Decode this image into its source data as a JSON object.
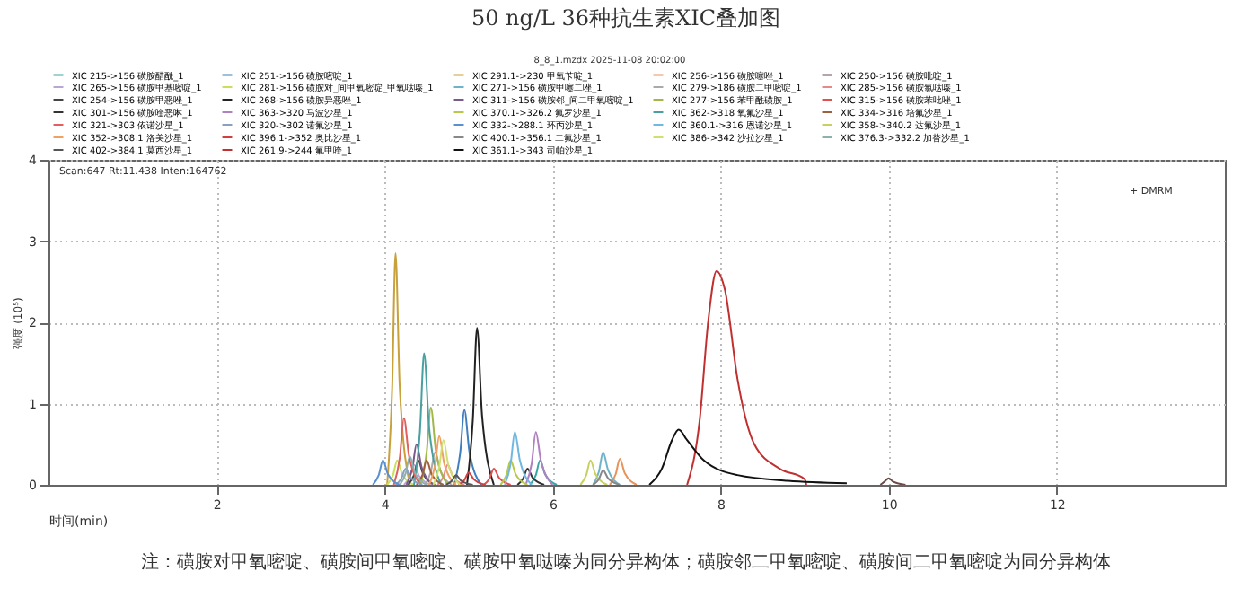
{
  "chart_data": {
    "type": "line",
    "title": "50 ng/L 36种抗生素XIC叠加图",
    "xlabel": "时间(min)",
    "ylabel": "强度 (10⁵)",
    "annotations": [
      "8_8_1.mzdx 2025-11-08 20:02:00",
      "Scan:647 Rt:11.438 Inten:164762",
      "+ DMRM",
      "注：磺胺对甲氧嘧啶、磺胺间甲氧嘧啶、磺胺甲氧哒嗪为同分异构体；磺胺邻二甲氧嘧啶、磺胺间二甲氧嘧啶为同分异构体"
    ],
    "xlim": [
      0,
      14
    ],
    "xticks": [
      2,
      4,
      6,
      8,
      10,
      12
    ],
    "ylim": [
      0,
      4
    ],
    "yticks": [
      0,
      1,
      2,
      3,
      4
    ],
    "grid": true,
    "legend": "top",
    "line_style": "solid",
    "series": [
      {
        "name": "XIC 215->156 磺胺醋酰_1",
        "color": "#3aa6a0",
        "x": [
          5.73,
          5.8,
          5.85,
          5.91,
          6.05
        ],
        "values": [
          0,
          0.12,
          0.3,
          0.13,
          0
        ]
      },
      {
        "name": "XIC 251->156 磺胺嘧啶_1",
        "color": "#3f7fbf",
        "x": [
          4.83,
          4.9,
          4.95,
          5.01,
          5.15
        ],
        "values": [
          0,
          0.4,
          0.92,
          0.4,
          0
        ]
      },
      {
        "name": "XIC 291.1->230 甲氧苄啶_1",
        "color": "#c8a13a",
        "x": [
          4.03,
          4.09,
          4.13,
          4.18,
          4.3
        ],
        "values": [
          0,
          1.2,
          2.85,
          1.2,
          0
        ]
      },
      {
        "name": "XIC 256->156 磺胺噻唑_1",
        "color": "#e8935a",
        "x": [
          6.68,
          6.75,
          6.8,
          6.86,
          7.0
        ],
        "values": [
          0,
          0.13,
          0.32,
          0.14,
          0
        ]
      },
      {
        "name": "XIC 250->156 磺胺吡啶_1",
        "color": "#6b4a4a",
        "x": [
          9.9,
          9.95,
          10.0,
          10.05,
          10.2
        ],
        "values": [
          0,
          0.04,
          0.08,
          0.04,
          0
        ]
      },
      {
        "name": "XIC 265->156 磺胺甲基嘧啶_1",
        "color": "#b9a6d3",
        "x": [
          4.23,
          4.3,
          4.35,
          4.41,
          4.55
        ],
        "values": [
          0,
          0.1,
          0.25,
          0.11,
          0
        ]
      },
      {
        "name": "XIC 281->156 磺胺对_间甲氧嘧啶_甲氧哒嗪_1",
        "color": "#c8e05a",
        "x": [
          4.03,
          4.1,
          4.15,
          4.21,
          4.35
        ],
        "values": [
          0,
          0.12,
          0.3,
          0.13,
          0
        ]
      },
      {
        "name": "XIC 271->156 磺胺甲噻二唑_1",
        "color": "#6fb3c8",
        "x": [
          6.48,
          6.55,
          6.6,
          6.66,
          6.8
        ],
        "values": [
          0,
          0.16,
          0.4,
          0.18,
          0
        ]
      },
      {
        "name": "XIC 279->186 磺胺二甲嘧啶_1",
        "color": "#aaaaaa",
        "x": [
          4.48,
          4.55,
          4.6,
          4.66,
          4.8
        ],
        "values": [
          0,
          0.16,
          0.4,
          0.18,
          0
        ]
      },
      {
        "name": "XIC 285->156 磺胺氯哒嗪_1",
        "color": "#e58a8a",
        "x": [
          4.63,
          4.7,
          4.75,
          4.81,
          4.95
        ],
        "values": [
          0,
          0.1,
          0.25,
          0.11,
          0
        ]
      },
      {
        "name": "XIC 254->156 磺胺甲恶唑_1",
        "color": "#444444",
        "x": [
          4.28,
          4.35,
          4.4,
          4.46,
          4.6
        ],
        "values": [
          0,
          0.12,
          0.3,
          0.13,
          0
        ]
      },
      {
        "name": "XIC 268->156 磺胺异恶唑_1",
        "color": "#222222",
        "x": [
          4.98,
          5.05,
          5.1,
          5.16,
          5.3
        ],
        "values": [
          0,
          0.8,
          1.93,
          0.85,
          0
        ]
      },
      {
        "name": "XIC 311->156 磺胺邻_间二甲氧嘧啶_1",
        "color": "#7a5a8a",
        "x": [
          4.26,
          4.33,
          4.38,
          4.44,
          4.58
        ],
        "values": [
          0,
          0.2,
          0.5,
          0.22,
          0
        ]
      },
      {
        "name": "XIC 277->156 苯甲酰磺胺_1",
        "color": "#a0b84a",
        "x": [
          4.43,
          4.5,
          4.55,
          4.61,
          4.75
        ],
        "values": [
          0,
          0.4,
          0.95,
          0.42,
          0
        ]
      },
      {
        "name": "XIC 315->156 磺胺苯吡唑_1",
        "color": "#e05050",
        "x": [
          5.18,
          5.25,
          5.3,
          5.36,
          5.5
        ],
        "values": [
          0,
          0.08,
          0.2,
          0.09,
          0
        ]
      },
      {
        "name": "XIC 301->156 磺胺喹恶啉_1",
        "color": "#333333",
        "x": [
          5.58,
          5.65,
          5.7,
          5.76,
          5.9
        ],
        "values": [
          0,
          0.08,
          0.2,
          0.09,
          0
        ]
      },
      {
        "name": "XIC 363->320 马波沙星_1",
        "color": "#b080c0",
        "x": [
          5.68,
          5.75,
          5.8,
          5.86,
          6.0
        ],
        "values": [
          0,
          0.26,
          0.65,
          0.3,
          0
        ]
      },
      {
        "name": "XIC 370.1->326.2 氟罗沙星_1",
        "color": "#b8c84a",
        "x": [
          5.38,
          5.45,
          5.5,
          5.56,
          5.7
        ],
        "values": [
          0,
          0.12,
          0.3,
          0.13,
          0
        ]
      },
      {
        "name": "XIC 362->318 氧氟沙星_1",
        "color": "#4aa0a0",
        "x": [
          4.35,
          4.42,
          4.47,
          4.53,
          4.67
        ],
        "values": [
          0,
          0.65,
          1.62,
          0.7,
          0
        ]
      },
      {
        "name": "XIC 334->316 培氟沙星_1",
        "color": "#a06040",
        "x": [
          4.38,
          4.45,
          4.5,
          4.56,
          4.7
        ],
        "values": [
          0,
          0.12,
          0.3,
          0.13,
          0
        ]
      },
      {
        "name": "XIC 321->303 依诺沙星_1",
        "color": "#e06060",
        "x": [
          4.11,
          4.18,
          4.23,
          4.29,
          4.43
        ],
        "values": [
          0,
          0.33,
          0.82,
          0.36,
          0
        ]
      },
      {
        "name": "XIC 320->302 诺氟沙星_1",
        "color": "#8aa0c0",
        "x": [
          4.13,
          4.2,
          4.25,
          4.31,
          4.45
        ],
        "values": [
          0,
          0.08,
          0.2,
          0.09,
          0
        ]
      },
      {
        "name": "XIC 332->288.1 环丙沙星_1",
        "color": "#5a90d0",
        "x": [
          3.86,
          3.93,
          3.98,
          4.04,
          4.18
        ],
        "values": [
          0,
          0.12,
          0.3,
          0.13,
          0
        ]
      },
      {
        "name": "XIC 360.1->316 恩诺沙星_1",
        "color": "#70b8e0",
        "x": [
          5.43,
          5.5,
          5.55,
          5.61,
          5.75
        ],
        "values": [
          0,
          0.26,
          0.65,
          0.3,
          0
        ]
      },
      {
        "name": "XIC 358->340.2 达氟沙星_1",
        "color": "#c8d060",
        "x": [
          6.33,
          6.4,
          6.45,
          6.51,
          6.65
        ],
        "values": [
          0,
          0.12,
          0.3,
          0.13,
          0
        ]
      },
      {
        "name": "XIC 352->308.1 洛美沙星_1",
        "color": "#f0a060",
        "x": [
          4.53,
          4.6,
          4.65,
          4.71,
          4.85
        ],
        "values": [
          0,
          0.24,
          0.6,
          0.26,
          0
        ]
      },
      {
        "name": "XIC 396.1->352 奥比沙星_1",
        "color": "#d04040",
        "x": [
          4.88,
          4.95,
          5.0,
          5.06,
          5.2
        ],
        "values": [
          0,
          0.06,
          0.15,
          0.07,
          0
        ]
      },
      {
        "name": "XIC 400.1->356.1 二氟沙星_1",
        "color": "#888888",
        "x": [
          6.48,
          6.55,
          6.6,
          6.66,
          6.8
        ],
        "values": [
          0,
          0.07,
          0.18,
          0.08,
          0
        ]
      },
      {
        "name": "XIC 386->342 沙拉沙星_1",
        "color": "#d0e070",
        "x": [
          4.58,
          4.65,
          4.7,
          4.76,
          4.9
        ],
        "values": [
          0,
          0.22,
          0.55,
          0.24,
          0
        ]
      },
      {
        "name": "XIC 376.3->332.2 加替沙星_1",
        "color": "#90b0b0",
        "x": [
          4.18,
          4.25,
          4.3,
          4.36,
          4.5
        ],
        "values": [
          0,
          0.14,
          0.35,
          0.15,
          0
        ]
      },
      {
        "name": "XIC 402->384.1 莫西沙星_1",
        "color": "#555555",
        "x": [
          4.73,
          4.8,
          4.85,
          4.91,
          5.05
        ],
        "values": [
          0,
          0.05,
          0.12,
          0.05,
          0
        ]
      },
      {
        "name": "XIC 261.9->244 氟甲喹_1",
        "color": "#c03030",
        "x": [
          7.6,
          7.75,
          7.85,
          7.95,
          8.05,
          8.2,
          8.4,
          8.7,
          9.0,
          9.02
        ],
        "values": [
          0,
          0.8,
          2.0,
          2.63,
          2.4,
          1.3,
          0.5,
          0.2,
          0.07,
          0
        ]
      },
      {
        "name": "XIC 361.1->343 司帕沙星_1",
        "color": "#111111",
        "x": [
          7.15,
          7.3,
          7.42,
          7.5,
          7.6,
          7.8,
          8.2,
          8.8,
          9.5
        ],
        "values": [
          0,
          0.2,
          0.55,
          0.68,
          0.55,
          0.3,
          0.12,
          0.05,
          0.02
        ]
      }
    ]
  }
}
